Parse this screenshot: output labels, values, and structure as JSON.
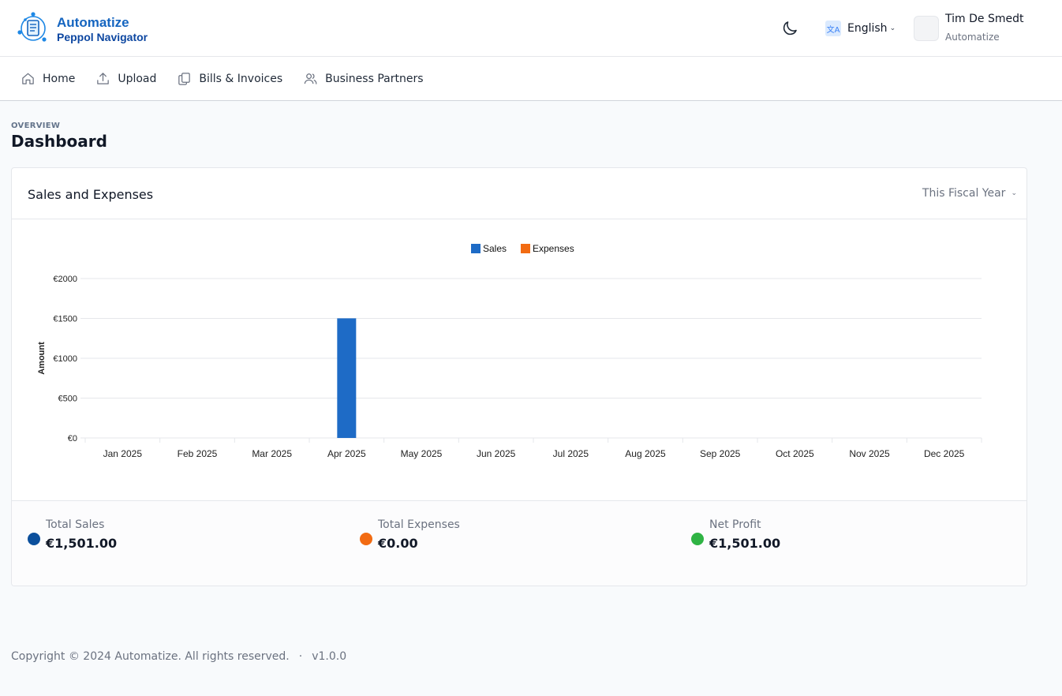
{
  "app": {
    "title": "Automatize",
    "subtitle": "Peppol Navigator"
  },
  "header": {
    "theme_icon": "moon-icon",
    "language_icon_glyph": "文A",
    "language_label": "English",
    "user_name": "Tim De Smedt",
    "user_org": "Automatize"
  },
  "nav": {
    "items": [
      {
        "label": "Home",
        "icon": "home-icon"
      },
      {
        "label": "Upload",
        "icon": "upload-icon"
      },
      {
        "label": "Bills & Invoices",
        "icon": "documents-icon"
      },
      {
        "label": "Business Partners",
        "icon": "users-icon"
      }
    ]
  },
  "page": {
    "overline": "OVERVIEW",
    "title": "Dashboard"
  },
  "card": {
    "title": "Sales and Expenses",
    "period_label": "This Fiscal Year"
  },
  "chart_data": {
    "type": "bar",
    "title": "",
    "xlabel": "",
    "ylabel": "Amount",
    "ylim": [
      0,
      2000
    ],
    "yticks": [
      0,
      500,
      1000,
      1500,
      2000
    ],
    "ytick_labels": [
      "€0",
      "€500",
      "€1000",
      "€1500",
      "€2000"
    ],
    "categories": [
      "Jan 2025",
      "Feb 2025",
      "Mar 2025",
      "Apr 2025",
      "May 2025",
      "Jun 2025",
      "Jul 2025",
      "Aug 2025",
      "Sep 2025",
      "Oct 2025",
      "Nov 2025",
      "Dec 2025"
    ],
    "series": [
      {
        "name": "Sales",
        "color": "#1e6bc6",
        "values": [
          0,
          0,
          0,
          1501,
          0,
          0,
          0,
          0,
          0,
          0,
          0,
          0
        ]
      },
      {
        "name": "Expenses",
        "color": "#f26b12",
        "values": [
          0,
          0,
          0,
          0,
          0,
          0,
          0,
          0,
          0,
          0,
          0,
          0
        ]
      }
    ],
    "legend": "top-center",
    "grid": true
  },
  "stats": [
    {
      "label": "Total Sales",
      "value": "€1,501.00",
      "color": "#0b4f9c"
    },
    {
      "label": "Total Expenses",
      "value": "€0.00",
      "color": "#f26b12"
    },
    {
      "label": "Net Profit",
      "value": "€1,501.00",
      "color": "#2fb344"
    }
  ],
  "footer": {
    "copyright": "Copyright © 2024 Automatize. All rights reserved.",
    "separator": "·",
    "version": "v1.0.0"
  }
}
